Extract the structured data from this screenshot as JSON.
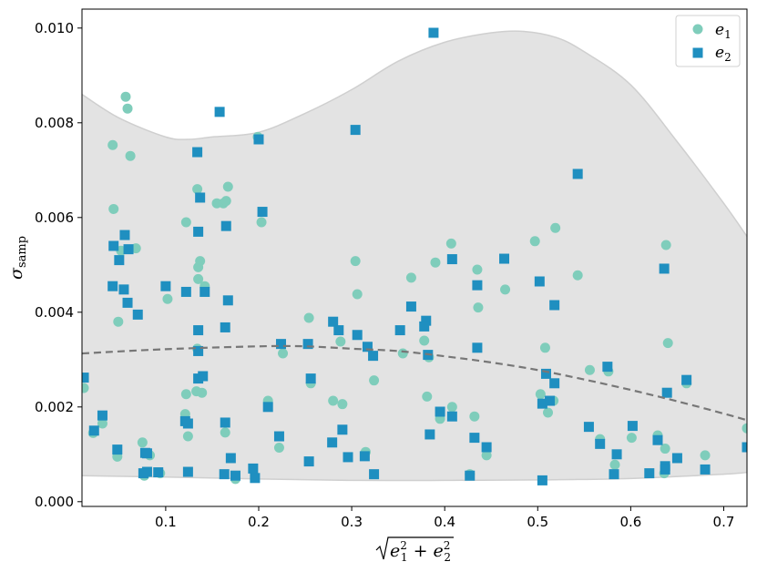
{
  "chart_data": {
    "type": "scatter",
    "xlabel": "√(e1² + e2²)",
    "ylabel": "σsamp",
    "xlim": [
      0.01,
      0.725
    ],
    "ylim": [
      -0.0001,
      0.0104
    ],
    "xticks": [
      0.1,
      0.2,
      0.3,
      0.4,
      0.5,
      0.6,
      0.7
    ],
    "yticks": [
      0.0,
      0.002,
      0.004,
      0.006,
      0.008,
      0.01
    ],
    "xtick_labels": [
      "0.1",
      "0.2",
      "0.3",
      "0.4",
      "0.5",
      "0.6",
      "0.7"
    ],
    "ytick_labels": [
      "0.000",
      "0.002",
      "0.004",
      "0.006",
      "0.008",
      "0.010"
    ],
    "grid": false,
    "legend": "top-right",
    "colors": {
      "e1": "#7fcdbb",
      "e2": "#1f8fc0",
      "band": "#e3e3e3",
      "band_edge": "#cfcfcf",
      "trend": "#777777"
    },
    "band_upper": {
      "x": [
        0.01,
        0.05,
        0.1,
        0.125,
        0.15,
        0.2,
        0.25,
        0.3,
        0.35,
        0.4,
        0.45,
        0.485,
        0.52,
        0.55,
        0.6,
        0.65,
        0.7,
        0.725
      ],
      "y": [
        0.0086,
        0.0081,
        0.0077,
        0.00765,
        0.0077,
        0.0078,
        0.0082,
        0.0087,
        0.0093,
        0.0097,
        0.0099,
        0.00993,
        0.0098,
        0.0095,
        0.0088,
        0.0076,
        0.0063,
        0.0056
      ]
    },
    "band_lower": {
      "x": [
        0.01,
        0.1,
        0.2,
        0.3,
        0.4,
        0.5,
        0.6,
        0.7,
        0.725
      ],
      "y": [
        0.00055,
        0.00052,
        0.00048,
        0.00045,
        0.00045,
        0.00046,
        0.00049,
        0.00058,
        0.00062
      ]
    },
    "trend": {
      "x": [
        0.01,
        0.1,
        0.2,
        0.25,
        0.3,
        0.35,
        0.4,
        0.45,
        0.5,
        0.55,
        0.6,
        0.65,
        0.7,
        0.725
      ],
      "y": [
        0.00313,
        0.00322,
        0.00328,
        0.00328,
        0.00323,
        0.00318,
        0.00307,
        0.00294,
        0.00278,
        0.00258,
        0.00236,
        0.00212,
        0.00186,
        0.00172
      ]
    },
    "series": [
      {
        "name": "e1",
        "marker": "circle",
        "points": [
          [
            0.057,
            0.00855
          ],
          [
            0.059,
            0.0083
          ],
          [
            0.062,
            0.0073
          ],
          [
            0.043,
            0.00753
          ],
          [
            0.044,
            0.00618
          ],
          [
            0.052,
            0.0053
          ],
          [
            0.068,
            0.00535
          ],
          [
            0.049,
            0.0038
          ],
          [
            0.012,
            0.0024
          ],
          [
            0.022,
            0.00145
          ],
          [
            0.032,
            0.00165
          ],
          [
            0.048,
            0.00095
          ],
          [
            0.075,
            0.00125
          ],
          [
            0.077,
            0.00055
          ],
          [
            0.083,
            0.00098
          ],
          [
            0.094,
            0.0006
          ],
          [
            0.102,
            0.00428
          ],
          [
            0.122,
            0.0059
          ],
          [
            0.134,
            0.0066
          ],
          [
            0.137,
            0.00508
          ],
          [
            0.135,
            0.00495
          ],
          [
            0.135,
            0.0047
          ],
          [
            0.142,
            0.00455
          ],
          [
            0.155,
            0.0063
          ],
          [
            0.162,
            0.0063
          ],
          [
            0.165,
            0.00635
          ],
          [
            0.167,
            0.00665
          ],
          [
            0.134,
            0.00323
          ],
          [
            0.133,
            0.00233
          ],
          [
            0.139,
            0.0023
          ],
          [
            0.122,
            0.00227
          ],
          [
            0.121,
            0.00185
          ],
          [
            0.124,
            0.00138
          ],
          [
            0.164,
            0.00146
          ],
          [
            0.175,
            0.00048
          ],
          [
            0.199,
            0.0077
          ],
          [
            0.203,
            0.0059
          ],
          [
            0.21,
            0.00213
          ],
          [
            0.222,
            0.00114
          ],
          [
            0.226,
            0.00313
          ],
          [
            0.254,
            0.00388
          ],
          [
            0.256,
            0.0025
          ],
          [
            0.28,
            0.00213
          ],
          [
            0.288,
            0.00338
          ],
          [
            0.29,
            0.00206
          ],
          [
            0.304,
            0.00508
          ],
          [
            0.306,
            0.00438
          ],
          [
            0.315,
            0.00105
          ],
          [
            0.324,
            0.00256
          ],
          [
            0.355,
            0.00313
          ],
          [
            0.364,
            0.00473
          ],
          [
            0.378,
            0.0034
          ],
          [
            0.381,
            0.00222
          ],
          [
            0.383,
            0.00305
          ],
          [
            0.39,
            0.00505
          ],
          [
            0.395,
            0.00175
          ],
          [
            0.407,
            0.00545
          ],
          [
            0.408,
            0.002
          ],
          [
            0.432,
            0.0018
          ],
          [
            0.435,
            0.0049
          ],
          [
            0.436,
            0.0041
          ],
          [
            0.445,
            0.00098
          ],
          [
            0.427,
            0.00058
          ],
          [
            0.465,
            0.00448
          ],
          [
            0.497,
            0.0055
          ],
          [
            0.503,
            0.00227
          ],
          [
            0.508,
            0.00325
          ],
          [
            0.511,
            0.00188
          ],
          [
            0.517,
            0.00213
          ],
          [
            0.519,
            0.00578
          ],
          [
            0.543,
            0.00478
          ],
          [
            0.556,
            0.00278
          ],
          [
            0.567,
            0.00132
          ],
          [
            0.576,
            0.00275
          ],
          [
            0.583,
            0.00078
          ],
          [
            0.601,
            0.00135
          ],
          [
            0.629,
            0.0014
          ],
          [
            0.636,
            0.0006
          ],
          [
            0.637,
            0.00112
          ],
          [
            0.638,
            0.00542
          ],
          [
            0.64,
            0.00335
          ],
          [
            0.66,
            0.0025
          ],
          [
            0.68,
            0.00098
          ],
          [
            0.725,
            0.00155
          ]
        ]
      },
      {
        "name": "e2",
        "marker": "square",
        "points": [
          [
            0.388,
            0.0099
          ],
          [
            0.158,
            0.00823
          ],
          [
            0.304,
            0.00785
          ],
          [
            0.134,
            0.00738
          ],
          [
            0.2,
            0.00765
          ],
          [
            0.543,
            0.00692
          ],
          [
            0.137,
            0.00642
          ],
          [
            0.204,
            0.00612
          ],
          [
            0.165,
            0.00582
          ],
          [
            0.135,
            0.0057
          ],
          [
            0.056,
            0.00563
          ],
          [
            0.044,
            0.0054
          ],
          [
            0.06,
            0.00533
          ],
          [
            0.05,
            0.0051
          ],
          [
            0.043,
            0.00455
          ],
          [
            0.055,
            0.00448
          ],
          [
            0.1,
            0.00455
          ],
          [
            0.122,
            0.00443
          ],
          [
            0.142,
            0.00443
          ],
          [
            0.059,
            0.0042
          ],
          [
            0.167,
            0.00425
          ],
          [
            0.07,
            0.00395
          ],
          [
            0.164,
            0.00368
          ],
          [
            0.135,
            0.00362
          ],
          [
            0.135,
            0.00318
          ],
          [
            0.135,
            0.0026
          ],
          [
            0.14,
            0.00265
          ],
          [
            0.408,
            0.00512
          ],
          [
            0.464,
            0.00513
          ],
          [
            0.502,
            0.00465
          ],
          [
            0.435,
            0.00457
          ],
          [
            0.636,
            0.00492
          ],
          [
            0.518,
            0.00415
          ],
          [
            0.364,
            0.00412
          ],
          [
            0.38,
            0.00382
          ],
          [
            0.378,
            0.0037
          ],
          [
            0.352,
            0.00362
          ],
          [
            0.28,
            0.0038
          ],
          [
            0.286,
            0.00362
          ],
          [
            0.306,
            0.00352
          ],
          [
            0.224,
            0.00333
          ],
          [
            0.253,
            0.00333
          ],
          [
            0.317,
            0.00327
          ],
          [
            0.323,
            0.00308
          ],
          [
            0.382,
            0.0031
          ],
          [
            0.435,
            0.00325
          ],
          [
            0.575,
            0.00285
          ],
          [
            0.509,
            0.0027
          ],
          [
            0.518,
            0.0025
          ],
          [
            0.66,
            0.00257
          ],
          [
            0.639,
            0.0023
          ],
          [
            0.012,
            0.00262
          ],
          [
            0.256,
            0.0026
          ],
          [
            0.21,
            0.002
          ],
          [
            0.121,
            0.0017
          ],
          [
            0.124,
            0.00165
          ],
          [
            0.164,
            0.00167
          ],
          [
            0.023,
            0.0015
          ],
          [
            0.032,
            0.00182
          ],
          [
            0.395,
            0.0019
          ],
          [
            0.408,
            0.0018
          ],
          [
            0.505,
            0.00207
          ],
          [
            0.513,
            0.00213
          ],
          [
            0.555,
            0.00158
          ],
          [
            0.602,
            0.0016
          ],
          [
            0.384,
            0.00142
          ],
          [
            0.432,
            0.00135
          ],
          [
            0.445,
            0.00115
          ],
          [
            0.222,
            0.00138
          ],
          [
            0.279,
            0.00125
          ],
          [
            0.29,
            0.00152
          ],
          [
            0.048,
            0.0011
          ],
          [
            0.078,
            0.00103
          ],
          [
            0.08,
            0.00102
          ],
          [
            0.17,
            0.00092
          ],
          [
            0.254,
            0.00085
          ],
          [
            0.296,
            0.00094
          ],
          [
            0.314,
            0.00096
          ],
          [
            0.324,
            0.00058
          ],
          [
            0.092,
            0.00062
          ],
          [
            0.076,
            0.0006
          ],
          [
            0.08,
            0.00063
          ],
          [
            0.124,
            0.00063
          ],
          [
            0.163,
            0.00058
          ],
          [
            0.175,
            0.00055
          ],
          [
            0.194,
            0.0007
          ],
          [
            0.196,
            0.0005
          ],
          [
            0.427,
            0.00055
          ],
          [
            0.505,
            0.00045
          ],
          [
            0.567,
            0.00122
          ],
          [
            0.585,
            0.001
          ],
          [
            0.582,
            0.00058
          ],
          [
            0.62,
            0.0006
          ],
          [
            0.629,
            0.0013
          ],
          [
            0.637,
            0.00075
          ],
          [
            0.637,
            0.00068
          ],
          [
            0.65,
            0.00092
          ],
          [
            0.68,
            0.00068
          ],
          [
            0.725,
            0.00115
          ]
        ]
      }
    ]
  },
  "legend": {
    "items": [
      {
        "label": "e",
        "sub": "1"
      },
      {
        "label": "e",
        "sub": "2"
      }
    ]
  }
}
